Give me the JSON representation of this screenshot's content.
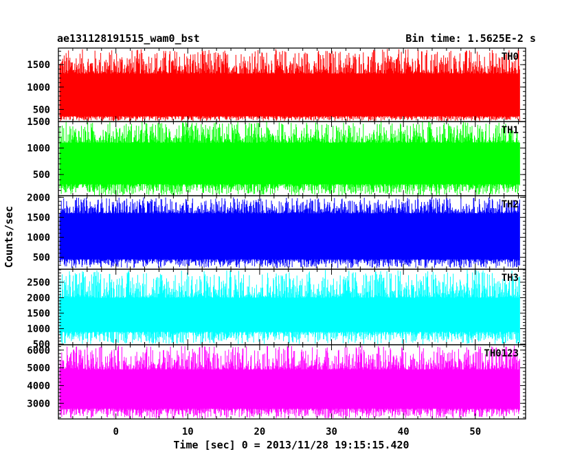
{
  "chart_data": {
    "type": "line",
    "title_left": "ae131128191515_wam0_bst",
    "title_right": "Bin time: 1.5625E-2 s",
    "xlabel": "Time [sec] 0 = 2013/11/28 19:15:15.420",
    "ylabel": "Counts/sec",
    "xlim": [
      -8,
      57
    ],
    "data_x_range": [
      -7.8,
      56.2
    ],
    "x_ticks": [
      0,
      10,
      20,
      30,
      40,
      50
    ],
    "x_tick_labels": [
      "0",
      "10",
      "20",
      "30",
      "40",
      "50"
    ],
    "grid": false,
    "panels": [
      {
        "name": "TH0",
        "color": "#ff0000",
        "ylim": [
          230,
          1870
        ],
        "y_ticks": [
          500,
          1000,
          1500
        ],
        "y_tick_labels": [
          "500",
          "1000",
          "1500"
        ],
        "band": [
          350,
          1300
        ],
        "spike_low": 240,
        "spike_high": 1850
      },
      {
        "name": "TH1",
        "color": "#00ff00",
        "ylim": [
          100,
          1500
        ],
        "y_ticks": [
          500,
          1000,
          1500
        ],
        "y_tick_labels": [
          "500",
          "1000",
          "1500"
        ],
        "band": [
          320,
          1100
        ],
        "spike_low": 110,
        "spike_high": 1500
      },
      {
        "name": "TH2",
        "color": "#0000ff",
        "ylim": [
          200,
          2040
        ],
        "y_ticks": [
          500,
          1000,
          1500,
          2000
        ],
        "y_tick_labels": [
          "500",
          "1000",
          "1500",
          "2000"
        ],
        "band": [
          450,
          1600
        ],
        "spike_low": 230,
        "spike_high": 2000
      },
      {
        "name": "TH3",
        "color": "#00ffff",
        "ylim": [
          480,
          2920
        ],
        "y_ticks": [
          500,
          1000,
          1500,
          2000,
          2500
        ],
        "y_tick_labels": [
          "500",
          "1000",
          "1500",
          "2000",
          "2500"
        ],
        "band": [
          900,
          2000
        ],
        "spike_low": 500,
        "spike_high": 2900
      },
      {
        "name": "TH0123",
        "color": "#ff00ff",
        "ylim": [
          2120,
          6300
        ],
        "y_ticks": [
          3000,
          4000,
          5000,
          6000
        ],
        "y_tick_labels": [
          "3000",
          "4000",
          "5000",
          "6000"
        ],
        "band": [
          2700,
          4900
        ],
        "spike_low": 2150,
        "spike_high": 6250
      }
    ]
  }
}
